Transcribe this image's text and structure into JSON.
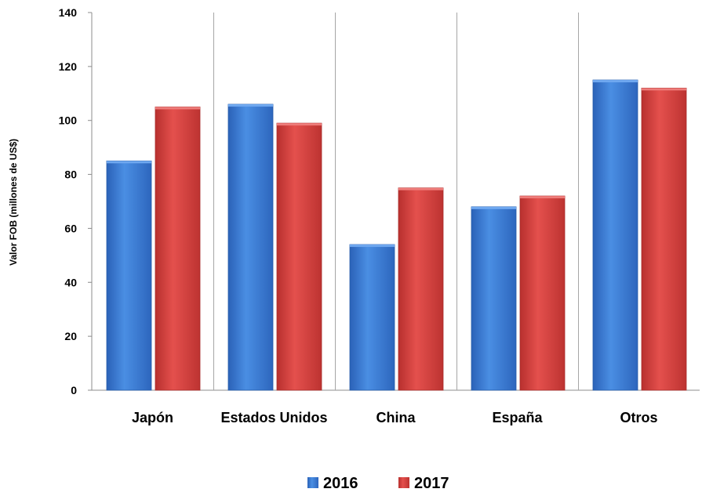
{
  "chart_data": {
    "type": "bar",
    "title": "",
    "xlabel": "",
    "ylabel": "Valor FOB (millones de US$)",
    "ylim": [
      0,
      140
    ],
    "yticks": [
      0,
      20,
      40,
      60,
      80,
      100,
      120,
      140
    ],
    "grid": "vertical separators between categories",
    "legend_position": "bottom-center",
    "categories": [
      "Japón",
      "Estados Unidos",
      "China",
      "España",
      "Otros"
    ],
    "series": [
      {
        "name": "2016",
        "color": "#3C7DD9",
        "values": [
          85,
          106,
          54,
          68,
          115
        ]
      },
      {
        "name": "2017",
        "color": "#D94442",
        "values": [
          105,
          99,
          75,
          72,
          112
        ]
      }
    ]
  }
}
